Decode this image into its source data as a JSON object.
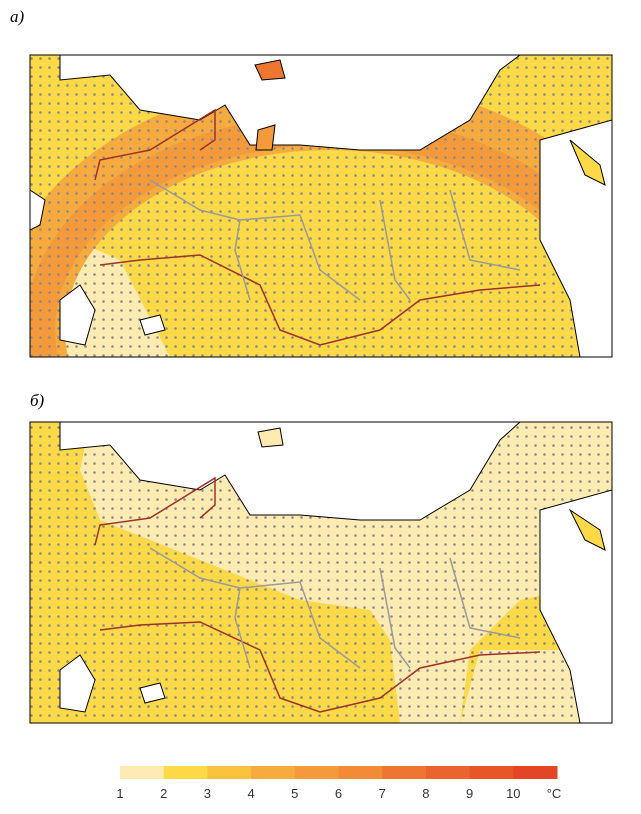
{
  "panels": [
    {
      "label": "а)"
    },
    {
      "label": "б)"
    }
  ],
  "colorbar": {
    "ticks": [
      1,
      2,
      3,
      4,
      5,
      6,
      7,
      8,
      9,
      10
    ],
    "unit": "°C",
    "colors": [
      "#fdebb2",
      "#fbd947",
      "#f9c13c",
      "#f7aa3e",
      "#f59a3b",
      "#f28a36",
      "#ef7631",
      "#ec642d",
      "#e85628",
      "#e34526"
    ]
  }
}
